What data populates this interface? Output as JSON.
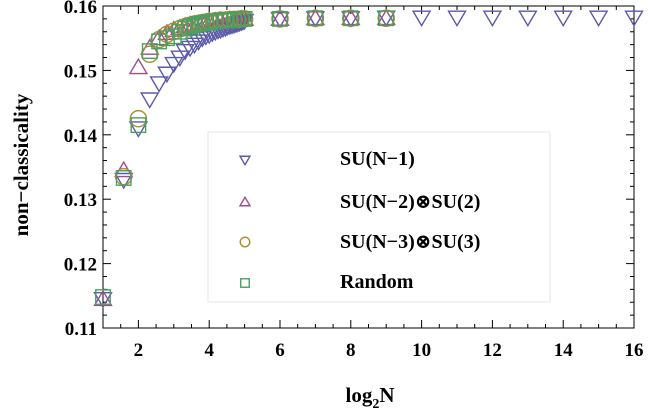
{
  "chart_data": {
    "type": "scatter",
    "title": "",
    "xlabel_base": "log",
    "xlabel_sub": "2",
    "xlabel_var": "N",
    "ylabel": "non−classicality",
    "xlim": [
      1,
      16
    ],
    "ylim": [
      0.11,
      0.16
    ],
    "xticks": [
      2,
      4,
      6,
      8,
      10,
      12,
      14,
      16
    ],
    "yticks": [
      0.11,
      0.12,
      0.13,
      0.14,
      0.15,
      0.16
    ],
    "ytick_labels": [
      "0.11",
      "0.12",
      "0.13",
      "0.14",
      "0.15",
      "0.16"
    ],
    "grid": false,
    "legend_position": "bottom-right",
    "series": [
      {
        "name": "SU(N−1)",
        "marker": "triangle-down",
        "color": "#5a5aaa",
        "points": [
          [
            1.0,
            0.1145
          ],
          [
            1.585,
            0.133
          ],
          [
            2.0,
            0.141
          ],
          [
            2.32,
            0.1455
          ],
          [
            2.585,
            0.148
          ],
          [
            2.807,
            0.1495
          ],
          [
            3.0,
            0.151
          ],
          [
            3.17,
            0.152
          ],
          [
            3.32,
            0.153
          ],
          [
            3.46,
            0.1535
          ],
          [
            3.585,
            0.154
          ],
          [
            3.7,
            0.1545
          ],
          [
            3.807,
            0.155
          ],
          [
            3.907,
            0.1553
          ],
          [
            4.0,
            0.1555
          ],
          [
            4.087,
            0.1558
          ],
          [
            4.17,
            0.156
          ],
          [
            4.248,
            0.1562
          ],
          [
            4.32,
            0.1563
          ],
          [
            4.39,
            0.1565
          ],
          [
            4.46,
            0.1566
          ],
          [
            4.52,
            0.1568
          ],
          [
            4.585,
            0.1569
          ],
          [
            4.644,
            0.157
          ],
          [
            4.7,
            0.1571
          ],
          [
            4.755,
            0.1572
          ],
          [
            4.807,
            0.1573
          ],
          [
            4.858,
            0.1574
          ],
          [
            4.907,
            0.1575
          ],
          [
            4.954,
            0.1576
          ],
          [
            5.0,
            0.1577
          ],
          [
            6,
            0.158
          ],
          [
            7,
            0.1581
          ],
          [
            8,
            0.1581
          ],
          [
            9,
            0.1582
          ],
          [
            10,
            0.1582
          ],
          [
            11,
            0.1582
          ],
          [
            12,
            0.1582
          ],
          [
            13,
            0.1582
          ],
          [
            14,
            0.1582
          ],
          [
            15,
            0.1582
          ],
          [
            16,
            0.1582
          ]
        ]
      },
      {
        "name": "SU(N−2)⊗SU(2)",
        "marker": "triangle-up",
        "color": "#a04d8c",
        "points": [
          [
            1.0,
            0.1145
          ],
          [
            1.585,
            0.1345
          ],
          [
            2.0,
            0.1505
          ],
          [
            2.32,
            0.1535
          ],
          [
            2.585,
            0.155
          ],
          [
            2.807,
            0.1558
          ],
          [
            3.0,
            0.1563
          ],
          [
            3.17,
            0.1566
          ],
          [
            3.32,
            0.1569
          ],
          [
            3.46,
            0.1571
          ],
          [
            3.585,
            0.1572
          ],
          [
            3.7,
            0.1573
          ],
          [
            3.807,
            0.1574
          ],
          [
            3.907,
            0.1575
          ],
          [
            4.0,
            0.1576
          ],
          [
            4.17,
            0.1577
          ],
          [
            4.32,
            0.1578
          ],
          [
            4.46,
            0.1578
          ],
          [
            4.585,
            0.1579
          ],
          [
            4.7,
            0.1579
          ],
          [
            4.807,
            0.1579
          ],
          [
            4.907,
            0.158
          ],
          [
            5.0,
            0.158
          ],
          [
            6,
            0.158
          ],
          [
            7,
            0.1581
          ],
          [
            8,
            0.1581
          ],
          [
            9,
            0.1581
          ]
        ]
      },
      {
        "name": "SU(N−3)⊗SU(3)",
        "marker": "circle",
        "color": "#a89030",
        "points": [
          [
            1.585,
            0.1335
          ],
          [
            2.0,
            0.1425
          ],
          [
            2.32,
            0.1525
          ],
          [
            2.585,
            0.1548
          ],
          [
            2.807,
            0.1556
          ],
          [
            3.0,
            0.1561
          ],
          [
            3.17,
            0.1565
          ],
          [
            3.32,
            0.1568
          ],
          [
            3.46,
            0.157
          ],
          [
            3.585,
            0.1572
          ],
          [
            3.7,
            0.1573
          ],
          [
            3.807,
            0.1574
          ],
          [
            3.907,
            0.1575
          ],
          [
            4.0,
            0.1576
          ],
          [
            4.17,
            0.1577
          ],
          [
            4.32,
            0.1578
          ],
          [
            4.46,
            0.1578
          ],
          [
            4.585,
            0.1579
          ],
          [
            4.7,
            0.1579
          ],
          [
            4.807,
            0.1579
          ],
          [
            4.907,
            0.158
          ],
          [
            5.0,
            0.158
          ],
          [
            6,
            0.158
          ],
          [
            7,
            0.1581
          ],
          [
            8,
            0.1581
          ],
          [
            9,
            0.1581
          ]
        ]
      },
      {
        "name": "Random",
        "marker": "square",
        "color": "#4aa060",
        "points": [
          [
            1.0,
            0.1148
          ],
          [
            1.585,
            0.1333
          ],
          [
            2.0,
            0.1415
          ],
          [
            2.32,
            0.153
          ],
          [
            2.585,
            0.1545
          ],
          [
            2.807,
            0.155
          ],
          [
            3.0,
            0.1553
          ],
          [
            3.17,
            0.156
          ],
          [
            3.32,
            0.1565
          ],
          [
            3.46,
            0.1568
          ],
          [
            3.585,
            0.157
          ],
          [
            3.7,
            0.1572
          ],
          [
            3.807,
            0.1573
          ],
          [
            3.907,
            0.1574
          ],
          [
            4.0,
            0.1575
          ],
          [
            4.17,
            0.1576
          ],
          [
            4.32,
            0.1577
          ],
          [
            4.46,
            0.1578
          ],
          [
            4.585,
            0.1578
          ],
          [
            4.7,
            0.1579
          ],
          [
            4.807,
            0.1579
          ],
          [
            4.907,
            0.158
          ],
          [
            5.0,
            0.158
          ],
          [
            6,
            0.158
          ],
          [
            7,
            0.1581
          ],
          [
            8,
            0.1581
          ],
          [
            9,
            0.1581
          ]
        ]
      }
    ]
  }
}
